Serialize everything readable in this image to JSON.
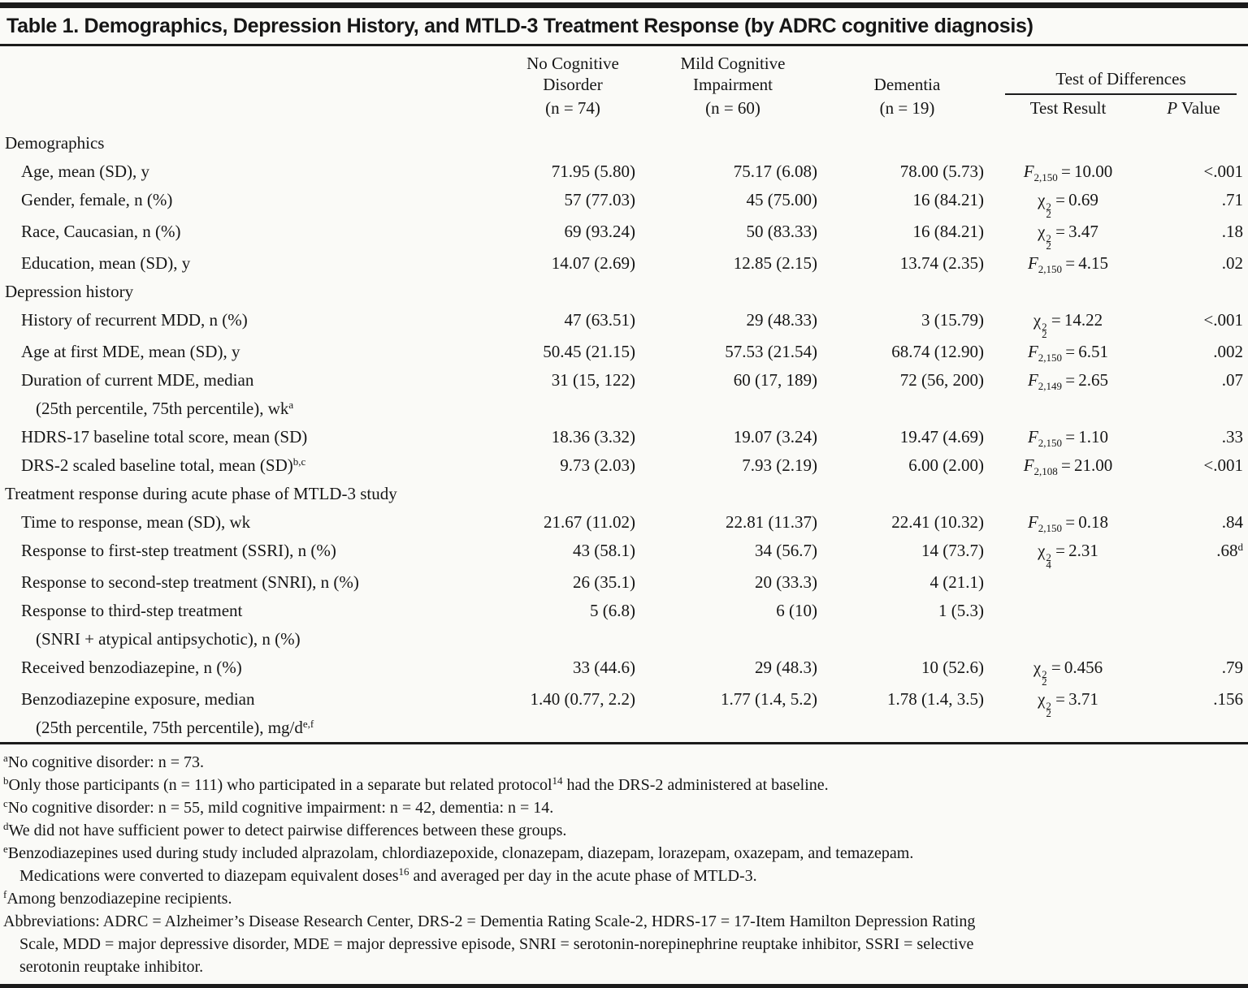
{
  "title": "Table 1. Demographics, Depression History, and MTLD-3 Treatment Response (by ADRC cognitive diagnosis)",
  "header": {
    "groups": [
      {
        "name": "No Cognitive Disorder",
        "n": "(n = 74)"
      },
      {
        "name": "Mild Cognitive Impairment",
        "n": "(n = 60)"
      },
      {
        "name": "Dementia",
        "n": "(n = 19)"
      }
    ],
    "test_of_differences": "Test of Differences",
    "test_result": "Test Result",
    "p_value": "~P~ Value"
  },
  "rows": [
    {
      "type": "section",
      "label": "Demographics"
    },
    {
      "type": "item",
      "label": "Age, mean (SD), y",
      "values": [
        "71.95 (5.80)",
        "75.17 (6.08)",
        "78.00 (5.73)"
      ],
      "test": {
        "sym": "F",
        "sub": "2,150",
        "val": "10.00"
      },
      "p": "<.001"
    },
    {
      "type": "item",
      "label": "Gender, female, n (%)",
      "values": [
        "57 (77.03)",
        "45 (75.00)",
        "16 (84.21)"
      ],
      "test": {
        "sym": "chi",
        "sup": "2",
        "sub": "2",
        "val": "0.69"
      },
      "p": ".71"
    },
    {
      "type": "item",
      "label": "Race, Caucasian, n (%)",
      "values": [
        "69 (93.24)",
        "50 (83.33)",
        "16 (84.21)"
      ],
      "test": {
        "sym": "chi",
        "sup": "2",
        "sub": "2",
        "val": "3.47"
      },
      "p": ".18"
    },
    {
      "type": "item",
      "label": "Education, mean (SD), y",
      "values": [
        "14.07 (2.69)",
        "12.85 (2.15)",
        "13.74 (2.35)"
      ],
      "test": {
        "sym": "F",
        "sub": "2,150",
        "val": "4.15"
      },
      "p": ".02"
    },
    {
      "type": "section",
      "label": "Depression history"
    },
    {
      "type": "item",
      "label": "History of recurrent MDD, n (%)",
      "values": [
        "47 (63.51)",
        "29 (48.33)",
        "3 (15.79)"
      ],
      "test": {
        "sym": "chi",
        "sup": "2",
        "sub": "2",
        "val": "14.22"
      },
      "p": "<.001"
    },
    {
      "type": "item",
      "label": "Age at first MDE, mean (SD), y",
      "values": [
        "50.45 (21.15)",
        "57.53 (21.54)",
        "68.74 (12.90)"
      ],
      "test": {
        "sym": "F",
        "sub": "2,150",
        "val": "6.51"
      },
      "p": ".002"
    },
    {
      "type": "item",
      "label": "Duration of current MDE, median",
      "label2": "(25th percentile, 75th percentile), wk{a}",
      "values": [
        "31 (15, 122)",
        "60 (17, 189)",
        "72 (56, 200)"
      ],
      "test": {
        "sym": "F",
        "sub": "2,149",
        "val": "2.65"
      },
      "p": ".07"
    },
    {
      "type": "item",
      "label": "HDRS-17 baseline total score, mean (SD)",
      "values": [
        "18.36 (3.32)",
        "19.07 (3.24)",
        "19.47 (4.69)"
      ],
      "test": {
        "sym": "F",
        "sub": "2,150",
        "val": "1.10"
      },
      "p": ".33"
    },
    {
      "type": "item",
      "label": "DRS-2 scaled baseline total, mean (SD){b,c}",
      "values": [
        "9.73 (2.03)",
        "7.93 (2.19)",
        "6.00 (2.00)"
      ],
      "test": {
        "sym": "F",
        "sub": "2,108",
        "val": "21.00"
      },
      "p": "<.001"
    },
    {
      "type": "section",
      "label": "Treatment response during acute phase of MTLD-3 study"
    },
    {
      "type": "item",
      "label": "Time to response, mean (SD), wk",
      "values": [
        "21.67 (11.02)",
        "22.81 (11.37)",
        "22.41 (10.32)"
      ],
      "test": {
        "sym": "F",
        "sub": "2,150",
        "val": "0.18"
      },
      "p": ".84"
    },
    {
      "type": "item",
      "label": "Response to first-step treatment (SSRI), n (%)",
      "values": [
        "43 (58.1)",
        "34 (56.7)",
        "14 (73.7)"
      ],
      "test": {
        "sym": "chi",
        "sup": "2",
        "sub": "4",
        "val": "2.31"
      },
      "p": ".68{d}"
    },
    {
      "type": "item",
      "label": "Response to second-step treatment (SNRI), n (%)",
      "values": [
        "26 (35.1)",
        "20 (33.3)",
        "4 (21.1)"
      ],
      "test": null,
      "p": ""
    },
    {
      "type": "item",
      "label": "Response to third-step treatment",
      "label2": "(SNRI + atypical antipsychotic), n (%)",
      "values": [
        "5 (6.8)",
        "6 (10)",
        "1 (5.3)"
      ],
      "test": null,
      "p": ""
    },
    {
      "type": "item",
      "label": "Received benzodiazepine, n (%)",
      "values": [
        "33 (44.6)",
        "29 (48.3)",
        "10 (52.6)"
      ],
      "test": {
        "sym": "chi",
        "sup": "2",
        "sub": "2",
        "val": "0.456"
      },
      "p": ".79"
    },
    {
      "type": "item",
      "label": "Benzodiazepine exposure, median",
      "label2": "(25th percentile, 75th percentile), mg/d{e,f}",
      "values": [
        "1.40 (0.77, 2.2)",
        "1.77 (1.4, 5.2)",
        "1.78 (1.4, 3.5)"
      ],
      "test": {
        "sym": "chi",
        "sup": "2",
        "sub": "2",
        "val": "3.71"
      },
      "p": ".156"
    }
  ],
  "footnotes": [
    {
      "lines": [
        {
          "t": "{a}No cognitive disorder: n = 73.",
          "ind": false
        }
      ]
    },
    {
      "lines": [
        {
          "t": "{b}Only those participants (n = 111) who participated in a separate but related protocol{14} had the DRS-2 administered at baseline.",
          "ind": false
        }
      ]
    },
    {
      "lines": [
        {
          "t": "{c}No cognitive disorder: n = 55, mild cognitive impairment: n = 42, dementia: n = 14.",
          "ind": false
        }
      ]
    },
    {
      "lines": [
        {
          "t": "{d}We did not have sufficient power to detect pairwise differences between these groups.",
          "ind": false
        }
      ]
    },
    {
      "lines": [
        {
          "t": "{e}Benzodiazepines used during study included alprazolam, chlordiazepoxide, clonazepam, diazepam, lorazepam, oxazepam, and temazepam.",
          "ind": false
        },
        {
          "t": "Medications were converted to diazepam equivalent doses{16} and averaged per day in the acute phase of MTLD-3.",
          "ind": true
        }
      ]
    },
    {
      "lines": [
        {
          "t": "{f}Among benzodiazepine recipients.",
          "ind": false
        }
      ]
    },
    {
      "lines": [
        {
          "t": "Abbreviations: ADRC = Alzheimer’s Disease Research Center, DRS-2 = Dementia Rating Scale-2, HDRS-17 = 17-Item Hamilton Depression Rating",
          "ind": false
        },
        {
          "t": "Scale, MDD = major depressive disorder, MDE = major depressive episode, SNRI = serotonin-norepinephrine reuptake inhibitor, SSRI = selective",
          "ind": true
        },
        {
          "t": "serotonin reuptake inhibitor.",
          "ind": true
        }
      ]
    }
  ]
}
